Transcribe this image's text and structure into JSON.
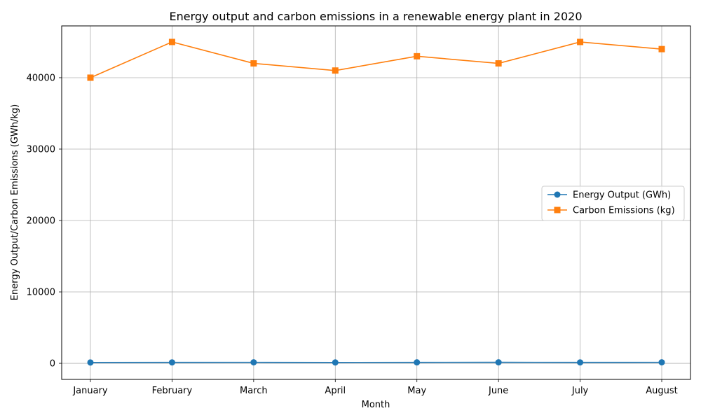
{
  "chart_data": {
    "type": "line",
    "title": "Energy output and carbon emissions in a renewable energy plant in 2020",
    "xlabel": "Month",
    "ylabel": "Energy Output/Carbon Emissions (GWh/kg)",
    "categories": [
      "January",
      "February",
      "March",
      "April",
      "May",
      "June",
      "July",
      "August"
    ],
    "ylim": [
      -2250,
      47250
    ],
    "yticks": [
      0,
      10000,
      20000,
      30000,
      40000
    ],
    "grid": true,
    "legend_position": "center-right",
    "series": [
      {
        "name": "Energy Output (GWh)",
        "color": "#1f77b4",
        "marker": "circle",
        "values": [
          120,
          130,
          140,
          125,
          135,
          145,
          130,
          140
        ]
      },
      {
        "name": "Carbon Emissions (kg)",
        "color": "#ff7f0e",
        "marker": "square",
        "values": [
          40000,
          45000,
          42000,
          41000,
          43000,
          42000,
          45000,
          44000
        ]
      }
    ]
  }
}
